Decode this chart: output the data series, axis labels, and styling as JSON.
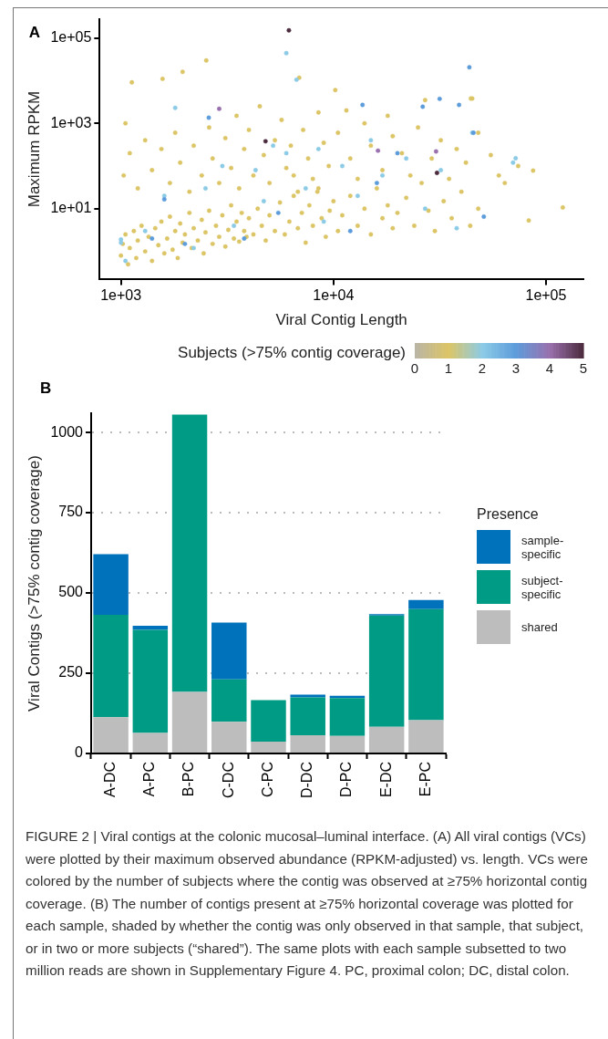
{
  "chart_data": [
    {
      "type": "scatter",
      "xlabel": "Viral Contig Length",
      "ylabel": "Maximum RPKM",
      "clabel": "Subjects (>75% contig coverage)",
      "annotations": [
        "A"
      ],
      "log": "xy",
      "grid": false,
      "legend": false,
      "marker": "circle",
      "xlim": [
        794,
        150000
      ],
      "ylim": [
        0.22,
        280000
      ],
      "xticks": [
        {
          "value": 1000,
          "label": "1e+03"
        },
        {
          "value": 10000,
          "label": "1e+04"
        },
        {
          "value": 100000,
          "label": "1e+05"
        }
      ],
      "yticks": [
        {
          "value": 10,
          "label": "1e+01"
        },
        {
          "value": 1000,
          "label": "1e+03"
        },
        {
          "value": 100000,
          "label": "1e+05"
        }
      ],
      "clim": [
        0,
        5
      ],
      "cticks": [
        0,
        1,
        2,
        3,
        4,
        5
      ],
      "x": [
        1000,
        1020,
        1050,
        1080,
        1100,
        1150,
        1180,
        1200,
        1250,
        1300,
        1350,
        1400,
        1450,
        1500,
        1550,
        1600,
        1650,
        1700,
        1750,
        1800,
        1850,
        1900,
        1950,
        2000,
        2100,
        2150,
        2200,
        2300,
        2400,
        2450,
        2500,
        2600,
        2700,
        2800,
        2900,
        3000,
        3100,
        3200,
        3300,
        3400,
        3500,
        3600,
        3700,
        3800,
        3900,
        4000,
        4200,
        4400,
        4600,
        4800,
        5000,
        5300,
        5600,
        5900,
        6200,
        6500,
        6800,
        7100,
        7400,
        7700,
        8000,
        8400,
        8800,
        9200,
        9600,
        10000,
        10500,
        11000,
        12000,
        13000,
        14000,
        15000,
        16000,
        17000,
        18000,
        19000,
        20000,
        22000,
        24000,
        26000,
        28000,
        30000,
        33000,
        36000,
        40000,
        44000,
        48000,
        1030,
        1050,
        1100,
        1200,
        1300,
        1400,
        1550,
        1700,
        1800,
        1900,
        2100,
        2200,
        2400,
        2600,
        2700,
        2900,
        3100,
        3300,
        3500,
        3600,
        3800,
        4000,
        4200,
        4500,
        4700,
        5000,
        5300,
        5700,
        6000,
        6300,
        6800,
        7200,
        7600,
        8000,
        8500,
        9000,
        9500,
        10500,
        11500,
        12000,
        13000,
        14000,
        15000,
        17000,
        18000,
        19000,
        21000,
        23000,
        25000,
        27000,
        29000,
        32000,
        35000,
        38000,
        42000,
        45000,
        48000,
        55000,
        60000,
        64000,
        74000,
        8500,
        6500,
        2520,
        1125,
        1570,
        1950,
        6900,
        10200,
        120000,
        83000,
        87000,
        44300,
        1000,
        1050,
        1300,
        1600,
        1800,
        2200,
        2500,
        3000,
        3400,
        4300,
        4700,
        5200,
        6000,
        7400,
        8500,
        9000,
        11000,
        13000,
        15000,
        17000,
        22000,
        27000,
        32000,
        38000,
        45000,
        70000,
        6000,
        6700,
        1000,
        72000,
        1400,
        2000,
        3800,
        5500,
        12000,
        16000,
        20000,
        43600,
        31600,
        26300,
        39000,
        13700,
        51000,
        2590,
        45600,
        1600,
        2900,
        30400,
        16200,
        6170,
        4790,
        30700
      ],
      "values": [
        0.8,
        1.5,
        2.5,
        0.5,
        1.2,
        3,
        0.7,
        1.8,
        4,
        1,
        2.2,
        0.6,
        3.5,
        1.4,
        5,
        0.9,
        2,
        6.5,
        1.1,
        3,
        0.7,
        4.5,
        1.6,
        2.5,
        8,
        1.2,
        3.5,
        1.8,
        5.5,
        0.9,
        2.8,
        9,
        1.5,
        4,
        2.2,
        7,
        1.3,
        3.2,
        12,
        2,
        5,
        1.7,
        8,
        3,
        2.2,
        6,
        2.5,
        10,
        4,
        1.8,
        7,
        3,
        14,
        2.5,
        5,
        20,
        3.5,
        8,
        1.6,
        12,
        4,
        25,
        6,
        2.2,
        9,
        15,
        3,
        7,
        20,
        4,
        10,
        2.5,
        30,
        6,
        12,
        3.5,
        8,
        18,
        4,
        40,
        9,
        3,
        15,
        6,
        25,
        4,
        10,
        60,
        1000,
        200,
        30,
        400,
        80,
        250,
        40,
        600,
        120,
        25,
        300,
        60,
        800,
        150,
        40,
        450,
        90,
        1500,
        30,
        250,
        700,
        60,
        2500,
        180,
        40,
        400,
        1200,
        90,
        300,
        25,
        700,
        150,
        50,
        1800,
        350,
        100,
        600,
        2000,
        150,
        50,
        1000,
        300,
        80,
        1500,
        500,
        200,
        60,
        800,
        3500,
        150,
        400,
        50,
        250,
        120,
        3800,
        600,
        180,
        60,
        40,
        100,
        30,
        60,
        29600,
        9100,
        11000,
        16000,
        11700,
        6000,
        10.7,
        5.3,
        78,
        3800,
        1.6,
        0.6,
        3,
        20,
        2300,
        1.2,
        30,
        100,
        4,
        80,
        15,
        300,
        200,
        30,
        250,
        5,
        100,
        20,
        400,
        60,
        150,
        10,
        80,
        3.5,
        600,
        120,
        44000,
        10500,
        1.9,
        152,
        2,
        1.5,
        2,
        8,
        3,
        40,
        200,
        20500,
        3740,
        2450,
        2700,
        2700,
        6.5,
        1350,
        600,
        16.6,
        2190,
        219,
        229,
        150000,
        380,
        69
      ],
      "cvalues": [
        1,
        1,
        1,
        1,
        1,
        1,
        1,
        1,
        1,
        1,
        1,
        1,
        1,
        1,
        1,
        1,
        1,
        1,
        1,
        1,
        1,
        1,
        1,
        1,
        1,
        1,
        1,
        1,
        1,
        1,
        1,
        1,
        1,
        1,
        1,
        1,
        1,
        1,
        1,
        1,
        1,
        1,
        1,
        1,
        1,
        1,
        1,
        1,
        1,
        1,
        1,
        1,
        1,
        1,
        1,
        1,
        1,
        1,
        1,
        1,
        1,
        1,
        1,
        1,
        1,
        1,
        1,
        1,
        1,
        1,
        1,
        1,
        1,
        1,
        1,
        1,
        1,
        1,
        1,
        1,
        1,
        1,
        1,
        1,
        1,
        1,
        1,
        1,
        1,
        1,
        1,
        1,
        1,
        1,
        1,
        1,
        1,
        1,
        1,
        1,
        1,
        1,
        1,
        1,
        1,
        1,
        1,
        1,
        1,
        1,
        1,
        1,
        1,
        1,
        1,
        1,
        1,
        1,
        1,
        1,
        1,
        1,
        1,
        1,
        1,
        1,
        1,
        1,
        1,
        1,
        1,
        1,
        1,
        1,
        1,
        1,
        1,
        1,
        1,
        1,
        1,
        1,
        1,
        1,
        1,
        1,
        1,
        1,
        1,
        1,
        1,
        1,
        1,
        1,
        1,
        1,
        1,
        1,
        1,
        1,
        2,
        2,
        2,
        2,
        2,
        2,
        2,
        2,
        2,
        2,
        2,
        2,
        2,
        2,
        2,
        2,
        2,
        2,
        2,
        2,
        2,
        2,
        2,
        2,
        2,
        2,
        2,
        2,
        2,
        2,
        3,
        3,
        3,
        3,
        3,
        3,
        3,
        3,
        3,
        3,
        3,
        3,
        3,
        3,
        3,
        3,
        4,
        4,
        4,
        5,
        5,
        5
      ]
    },
    {
      "type": "bar",
      "stacked": true,
      "ylabel": "Viral Contigs (>75% contig coverage)",
      "legend_title": "Presence",
      "legend": "right",
      "grid": "y",
      "line_style": "dotted",
      "annotations": [
        "B",
        "FIGURE 2 | Viral contigs at the colonic mucosal–luminal interface. (A) All viral contigs (VCs) were plotted by their maximum observed abundance (RPKM-adjusted) vs. length. VCs were colored by the number of subjects where the contig was observed at ≥75% horizontal contig coverage. (B) The number of contigs present at ≥75% horizontal coverage was plotted for each sample, shaded by whether the contig was only observed in that sample, that subject, or in two or more subjects (“shared”). The same plots with each sample subsetted to two million reads are shown in Supplementary Figure 4. PC, proximal colon; DC, distal colon."
      ],
      "categories": [
        "A-DC",
        "A-PC",
        "B-PC",
        "C-DC",
        "C-PC",
        "D-DC",
        "D-PC",
        "E-DC",
        "E-PC"
      ],
      "ylim": [
        0,
        1060
      ],
      "yticks": [
        0,
        250,
        500,
        750,
        1000
      ],
      "series": [
        {
          "name": "shared",
          "color": "#bdbdbd",
          "values": [
            113,
            64,
            192,
            99,
            37,
            57,
            55,
            83,
            104
          ]
        },
        {
          "name": "subject-specific",
          "color": "#009b84",
          "values": [
            319,
            321,
            864,
            132,
            129,
            118,
            118,
            347,
            346
          ]
        },
        {
          "name": "sample-specific",
          "color": "#0072bb",
          "values": [
            189,
            13,
            0,
            177,
            0,
            8,
            7,
            4,
            28
          ]
        }
      ]
    }
  ]
}
